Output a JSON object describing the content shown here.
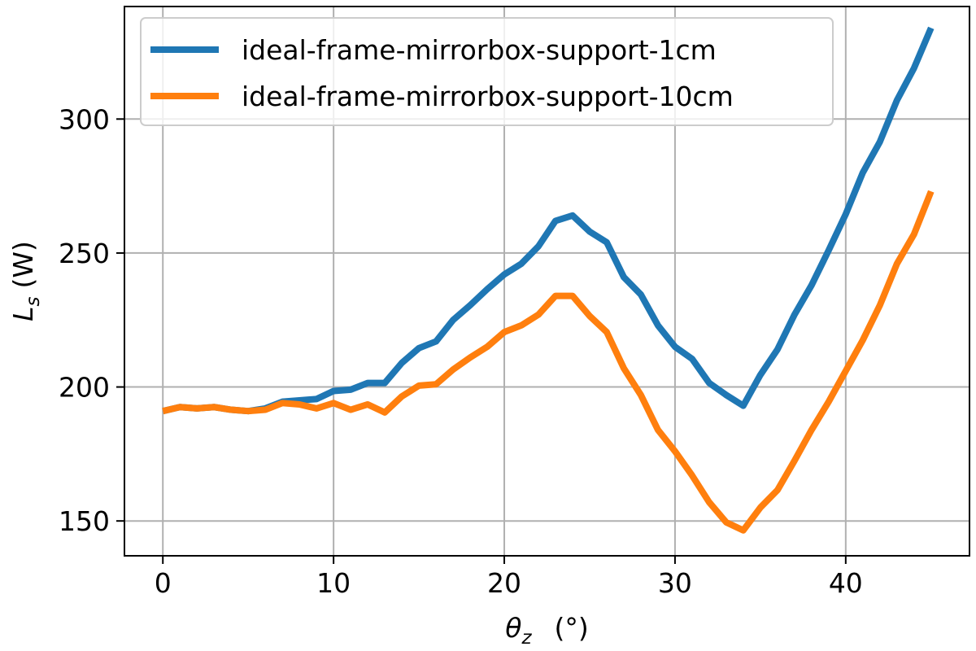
{
  "chart_data": {
    "type": "line",
    "title": "",
    "xlabel_main": "θ",
    "xlabel_sub": "z",
    "xlabel_unit": "(°)",
    "ylabel_main": "L",
    "ylabel_sub": "s",
    "ylabel_unit": "(W)",
    "xlim": [
      -2.25,
      47.25
    ],
    "ylim": [
      137,
      342
    ],
    "x_ticks": [
      0,
      10,
      20,
      30,
      40
    ],
    "x_tick_labels": [
      "0",
      "10",
      "20",
      "30",
      "40"
    ],
    "y_ticks": [
      150,
      200,
      250,
      300
    ],
    "y_tick_labels": [
      "150",
      "200",
      "250",
      "300"
    ],
    "grid": true,
    "legend_position": "top-left",
    "x": [
      0,
      1,
      2,
      3,
      4,
      5,
      6,
      7,
      8,
      9,
      10,
      11,
      12,
      13,
      14,
      15,
      16,
      17,
      18,
      19,
      20,
      21,
      22,
      23,
      24,
      25,
      26,
      27,
      28,
      29,
      30,
      31,
      32,
      33,
      34,
      35,
      36,
      37,
      38,
      39,
      40,
      41,
      42,
      43,
      44,
      45
    ],
    "series": [
      {
        "name": "ideal-frame-mirrorbox-support-1cm",
        "color": "#1f77b4",
        "values": [
          191,
          192.5,
          192,
          192.5,
          191.5,
          191,
          192,
          194.5,
          195,
          195.5,
          198.5,
          199,
          201.5,
          201.5,
          209,
          214.5,
          217,
          225,
          230.5,
          236.5,
          242,
          246,
          252.5,
          262,
          264,
          258,
          254,
          241,
          234.5,
          223,
          215,
          210.5,
          201.5,
          197,
          193,
          204.5,
          214,
          227,
          238,
          251,
          264.5,
          280,
          291.5,
          307,
          319,
          334
        ]
      },
      {
        "name": "ideal-frame-mirrorbox-support-10cm",
        "color": "#ff7f0e",
        "values": [
          191,
          192.5,
          192,
          192.5,
          191.5,
          191,
          191.5,
          194,
          193.5,
          192,
          194,
          191.5,
          193.5,
          190.5,
          196.5,
          200.5,
          201,
          206.5,
          211,
          215,
          220.5,
          223,
          227,
          234,
          234,
          226.5,
          220.5,
          207,
          197,
          184,
          176,
          167,
          157,
          149.5,
          146.5,
          155,
          161.5,
          172.5,
          184,
          194.5,
          206,
          217.5,
          230.5,
          246,
          257,
          273
        ]
      }
    ]
  }
}
